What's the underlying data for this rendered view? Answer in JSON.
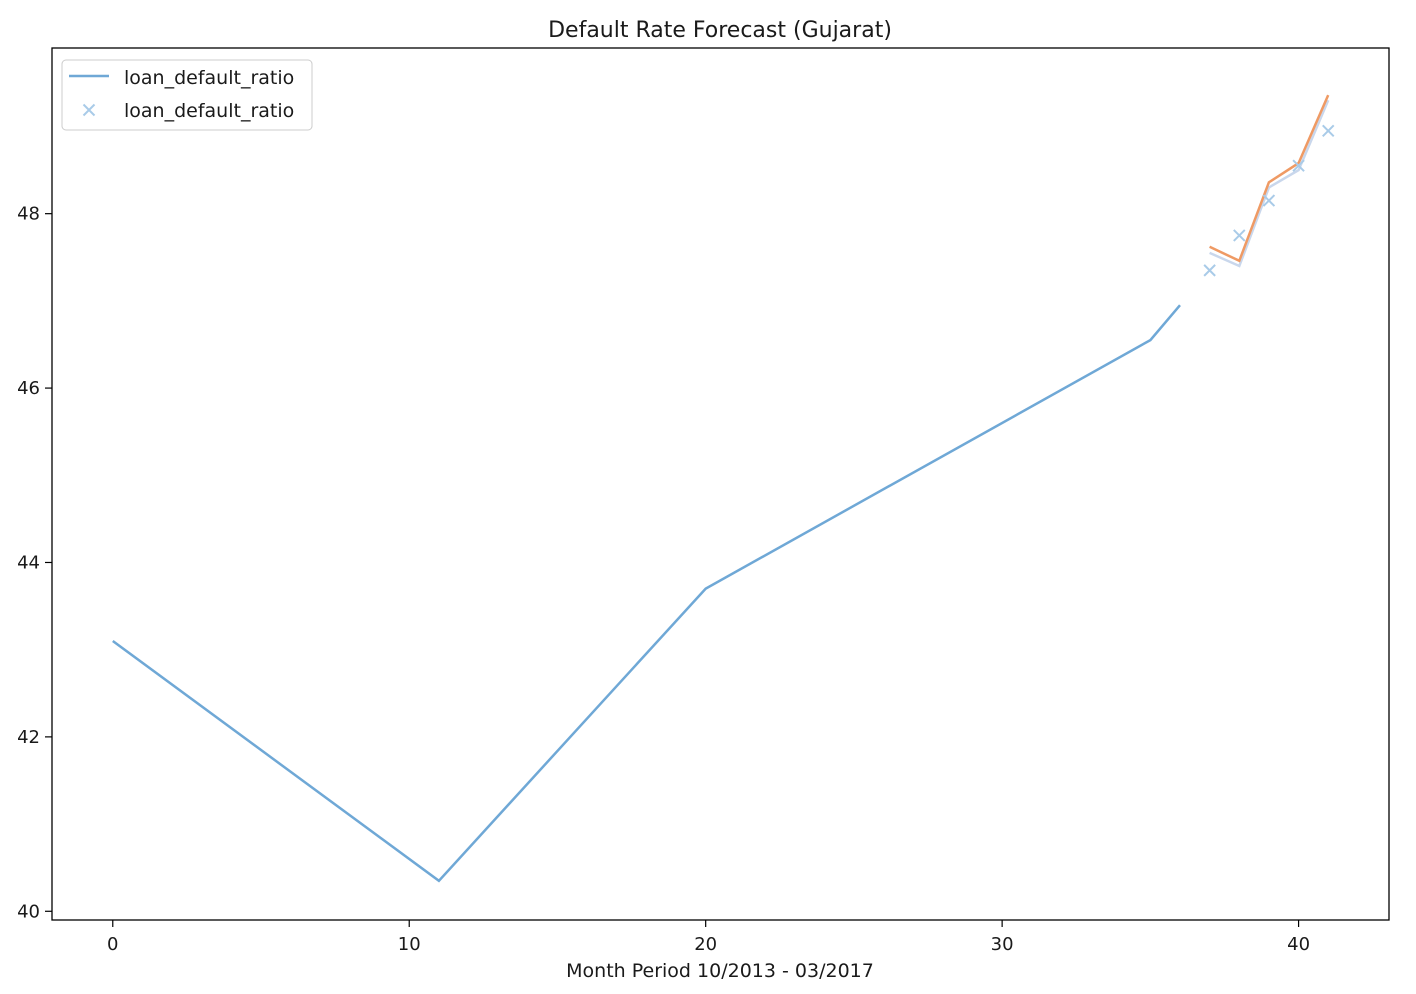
{
  "chart_data": {
    "type": "line",
    "title": "Default Rate Forecast (Gujarat)",
    "xlabel": "Month Period 10/2013 - 03/2017",
    "ylabel": "",
    "xlim": [
      -2.05,
      43.05
    ],
    "ylim": [
      39.9,
      49.9
    ],
    "x_ticks": [
      0,
      10,
      20,
      30,
      40
    ],
    "y_ticks": [
      40,
      42,
      44,
      46,
      48
    ],
    "grid": false,
    "legend_position": "upper-left",
    "series": [
      {
        "name": "loan_default_ratio",
        "kind": "line",
        "color": "#6fa8d6",
        "x": [
          0,
          11,
          20,
          35,
          36
        ],
        "y": [
          43.1,
          40.35,
          43.7,
          46.55,
          46.95
        ],
        "in_legend": true
      },
      {
        "name": "loan_default_ratio",
        "kind": "marker",
        "marker": "x",
        "color": "#a9cbe8",
        "x": [
          37,
          38,
          39,
          40,
          41
        ],
        "y": [
          47.35,
          47.75,
          48.15,
          48.55,
          48.95
        ],
        "in_legend": true
      },
      {
        "kind": "line",
        "color": "#c9d7ec",
        "x": [
          37,
          38,
          39,
          40,
          41
        ],
        "y": [
          47.55,
          47.4,
          48.3,
          48.5,
          49.3
        ],
        "in_legend": false
      },
      {
        "kind": "line",
        "color": "#ef9a64",
        "x": [
          37,
          38,
          39,
          40,
          41
        ],
        "y": [
          47.62,
          47.46,
          48.36,
          48.58,
          49.36
        ],
        "in_legend": false
      }
    ]
  }
}
